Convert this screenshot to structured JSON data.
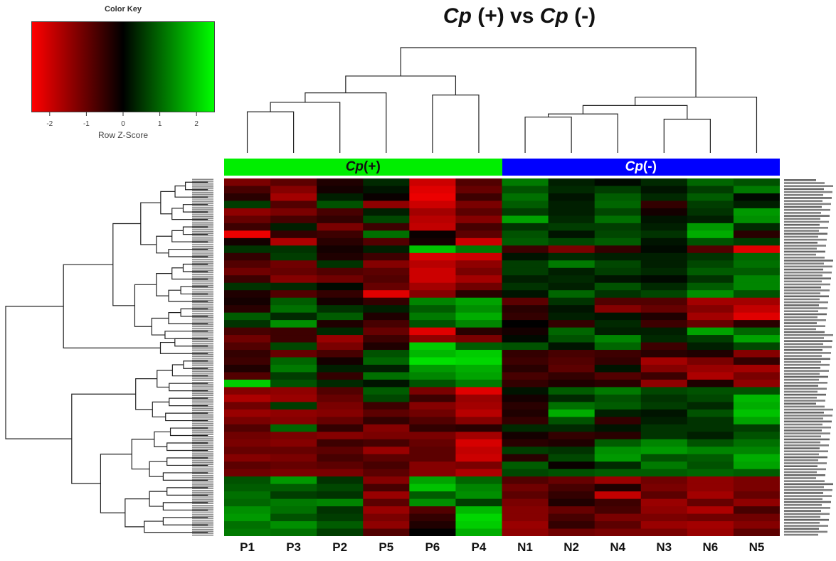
{
  "chart_data": {
    "type": "heatmap",
    "title": "Cp (+) vs Cp (-)",
    "title_parts": [
      {
        "text": "Cp",
        "italic": true
      },
      {
        "text": " (+) vs ",
        "italic": false
      },
      {
        "text": "Cp",
        "italic": true
      },
      {
        "text": " (-)",
        "italic": false
      }
    ],
    "color_key": {
      "title": "Color Key",
      "xlabel": "Row Z-Score",
      "ticks": [
        "-2",
        "-1",
        "0",
        "1",
        "2"
      ],
      "tick_values": [
        -2,
        -1,
        0,
        1,
        2
      ],
      "range": [
        -2.5,
        2.5
      ],
      "low_color": "#ff0000",
      "mid_color": "#000000",
      "high_color": "#00ff00"
    },
    "groups": [
      {
        "label_main": "Cp",
        "label_rest": " (+)",
        "color": "#00ee00",
        "text_color": "#111111",
        "columns": [
          "P1",
          "P3",
          "P2",
          "P5",
          "P6",
          "P4"
        ]
      },
      {
        "label_main": "Cp",
        "label_rest": " (-)",
        "color": "#0000ff",
        "text_color": "#ffffff",
        "columns": [
          "N1",
          "N2",
          "N4",
          "N3",
          "N6",
          "N5"
        ]
      }
    ],
    "columns": [
      "P1",
      "P3",
      "P2",
      "P5",
      "P6",
      "P4",
      "N1",
      "N2",
      "N4",
      "N3",
      "N6",
      "N5"
    ],
    "column_dendrogram": {
      "merges": [
        {
          "a": "P1",
          "b": "P3",
          "id": "c1",
          "height": 0.39
        },
        {
          "a": "c1",
          "b": "P2",
          "id": "c2",
          "height": 0.48
        },
        {
          "a": "c2",
          "b": "P5",
          "id": "c3",
          "height": 0.57
        },
        {
          "a": "P6",
          "b": "P4",
          "id": "c4",
          "height": 0.55
        },
        {
          "a": "c3",
          "b": "c4",
          "id": "c5",
          "height": 0.73
        },
        {
          "a": "N1",
          "b": "N2",
          "id": "c6",
          "height": 0.34
        },
        {
          "a": "c6",
          "b": "N4",
          "id": "c7",
          "height": 0.37
        },
        {
          "a": "N3",
          "b": "N6",
          "id": "c8",
          "height": 0.32
        },
        {
          "a": "c7",
          "b": "c8",
          "id": "c9",
          "height": 0.45
        },
        {
          "a": "c9",
          "b": "N5",
          "id": "c10",
          "height": 0.53
        },
        {
          "a": "c5",
          "b": "c10",
          "id": "c11",
          "height": 1.0
        }
      ]
    },
    "row_dendrogram": {
      "note": "Row clustering of genes; two major clusters",
      "major_clusters": [
        {
          "rows": [
            0,
            23
          ],
          "height": 0.72,
          "sub": [
            [
              0,
              21,
              0.48
            ],
            [
              21,
              23,
              0.25
            ]
          ]
        },
        {
          "rows": [
            24,
            47
          ],
          "height": 0.68,
          "sub": [
            [
              24,
              32,
              0.37
            ],
            [
              33,
              47,
              0.54
            ]
          ]
        }
      ],
      "root_height": 1.0
    },
    "row_zscores": [
      [
        -1.2,
        -0.9,
        -0.3,
        0.4,
        -2.0,
        -0.8,
        1.2,
        0.3,
        0.1,
        0.4,
        1.0,
        0.8
      ],
      [
        -0.7,
        -1.3,
        -0.2,
        0.2,
        -2.2,
        -1.0,
        0.8,
        0.4,
        0.6,
        0.2,
        0.6,
        1.2
      ],
      [
        -0.4,
        -1.6,
        0.3,
        -0.1,
        -2.3,
        -0.6,
        1.1,
        0.2,
        0.9,
        0.4,
        0.9,
        0.1
      ],
      [
        0.6,
        -0.8,
        0.8,
        -1.4,
        -2.0,
        -1.2,
        0.9,
        0.3,
        1.0,
        -0.5,
        0.6,
        0.3
      ],
      [
        -1.4,
        -1.2,
        -0.7,
        0.3,
        -1.6,
        -0.9,
        0.6,
        0.3,
        0.7,
        -0.2,
        0.5,
        1.5
      ],
      [
        -1.0,
        -0.7,
        -0.5,
        0.7,
        -1.8,
        -1.3,
        1.6,
        0.4,
        1.1,
        0.2,
        0.3,
        1.4
      ],
      [
        -0.6,
        0.3,
        -1.2,
        -0.6,
        -1.9,
        -0.7,
        0.5,
        0.6,
        0.6,
        0.3,
        1.5,
        0.4
      ],
      [
        -2.3,
        -0.5,
        -0.6,
        1.1,
        -0.1,
        -0.9,
        0.8,
        0.2,
        0.7,
        0.5,
        1.7,
        -0.4
      ],
      [
        -0.2,
        -1.7,
        -0.4,
        -0.8,
        -0.2,
        -2.0,
        0.9,
        0.7,
        0.9,
        0.2,
        0.8,
        0.6
      ],
      [
        0.5,
        0.5,
        -0.2,
        0.3,
        1.9,
        1.2,
        -0.6,
        -1.2,
        -0.5,
        0.1,
        -0.8,
        -2.2
      ],
      [
        -0.5,
        0.6,
        -0.3,
        -0.6,
        -2.1,
        -2.0,
        0.2,
        0.4,
        0.3,
        0.3,
        0.5,
        1.0
      ],
      [
        -0.8,
        -1.1,
        0.5,
        -1.3,
        -1.8,
        -1.4,
        0.6,
        1.2,
        0.7,
        0.3,
        0.7,
        1.1
      ],
      [
        -1.1,
        -1.0,
        -0.8,
        -0.9,
        -2.0,
        -1.2,
        0.6,
        0.3,
        0.6,
        0.4,
        0.9,
        0.9
      ],
      [
        -0.6,
        -1.3,
        -1.1,
        -0.8,
        -2.0,
        -1.6,
        0.3,
        0.4,
        0.2,
        0.1,
        0.5,
        1.3
      ],
      [
        0.5,
        0.4,
        0.1,
        -1.0,
        -1.6,
        -1.1,
        0.5,
        0.3,
        0.8,
        0.4,
        0.9,
        1.3
      ],
      [
        -0.3,
        -0.8,
        -0.5,
        -2.2,
        -1.3,
        -0.4,
        0.2,
        1.0,
        0.5,
        0.7,
        1.4,
        0.8
      ],
      [
        -0.2,
        0.9,
        -0.2,
        -0.5,
        1.3,
        1.6,
        -0.9,
        0.5,
        -0.8,
        -0.8,
        -1.6,
        -1.6
      ],
      [
        -0.4,
        1.1,
        0.5,
        0.3,
        0.9,
        1.4,
        -0.4,
        0.2,
        -1.3,
        -1.0,
        -1.3,
        -1.9
      ],
      [
        0.9,
        0.4,
        0.9,
        -0.3,
        1.2,
        1.7,
        -0.5,
        0.3,
        0.2,
        -0.3,
        -1.6,
        -2.2
      ],
      [
        0.5,
        1.4,
        -0.3,
        -0.7,
        0.8,
        1.3,
        0.0,
        -0.5,
        0.4,
        -0.6,
        -1.0,
        -0.4
      ],
      [
        -0.7,
        -0.6,
        0.4,
        -1.0,
        -2.2,
        -0.4,
        -0.2,
        1.0,
        0.3,
        0.3,
        1.6,
        1.0
      ],
      [
        -1.1,
        -0.6,
        -1.5,
        -0.6,
        -1.4,
        -1.2,
        0.1,
        0.8,
        1.3,
        0.4,
        0.6,
        1.6
      ],
      [
        -0.8,
        0.7,
        -1.2,
        -0.3,
        2.0,
        0.9,
        0.8,
        0.2,
        1.0,
        -0.6,
        0.3,
        0.7
      ],
      [
        -0.5,
        -1.0,
        -0.7,
        0.8,
        1.8,
        2.0,
        -0.5,
        -0.7,
        -0.6,
        -0.4,
        -0.3,
        -1.3
      ],
      [
        -0.6,
        1.0,
        -0.2,
        1.0,
        2.2,
        2.1,
        -0.6,
        -0.8,
        -0.5,
        -1.6,
        -1.2,
        -0.5
      ],
      [
        -0.3,
        1.2,
        0.3,
        0.3,
        1.5,
        1.7,
        -0.4,
        -0.9,
        0.2,
        -1.3,
        -1.5,
        -1.6
      ],
      [
        -0.8,
        0.6,
        -0.5,
        1.1,
        1.3,
        1.6,
        -0.7,
        -0.5,
        -0.8,
        -0.6,
        -1.7,
        -1.2
      ],
      [
        2.0,
        0.8,
        0.4,
        0.2,
        0.8,
        1.2,
        -0.5,
        -0.3,
        -0.4,
        -1.4,
        -0.3,
        -1.4
      ],
      [
        -1.3,
        -1.4,
        -0.8,
        0.9,
        -1.2,
        -2.2,
        0.2,
        0.9,
        1.2,
        0.7,
        0.8,
        0.8
      ],
      [
        -1.7,
        -1.5,
        -1.0,
        0.7,
        -0.6,
        -1.5,
        -0.2,
        0.4,
        0.8,
        0.5,
        0.7,
        1.8
      ],
      [
        -1.1,
        0.6,
        -1.2,
        -0.6,
        -1.3,
        -1.6,
        -0.4,
        1.1,
        0.9,
        0.6,
        0.4,
        1.7
      ],
      [
        -1.5,
        -1.4,
        -1.3,
        -0.9,
        -1.1,
        -1.8,
        -0.3,
        1.7,
        0.3,
        0.2,
        0.8,
        1.9
      ],
      [
        -1.2,
        -1.3,
        -1.0,
        -0.5,
        -0.8,
        -1.3,
        -0.5,
        0.8,
        -0.5,
        0.3,
        0.5,
        1.6
      ],
      [
        -0.8,
        1.0,
        -0.5,
        -1.3,
        -0.5,
        -0.4,
        0.4,
        0.4,
        0.2,
        0.5,
        0.5,
        0.6
      ],
      [
        -1.1,
        -1.2,
        -1.3,
        -1.2,
        -1.2,
        -1.6,
        -0.2,
        -0.5,
        -0.4,
        0.5,
        0.3,
        0.8
      ],
      [
        -1.2,
        -1.3,
        -0.6,
        -0.7,
        -1.0,
        -2.1,
        -0.4,
        -0.3,
        0.9,
        1.3,
        0.8,
        1.1
      ],
      [
        -1.0,
        -1.0,
        -0.9,
        -1.5,
        -0.9,
        -1.9,
        0.6,
        0.5,
        1.4,
        1.5,
        1.3,
        1.3
      ],
      [
        -1.3,
        -1.2,
        -0.7,
        -0.9,
        -0.9,
        -2.0,
        -0.4,
        0.7,
        1.5,
        0.8,
        0.9,
        1.7
      ],
      [
        -0.9,
        -1.0,
        -0.9,
        -0.7,
        -1.3,
        -1.2,
        0.9,
        -0.1,
        0.4,
        1.2,
        0.8,
        1.6
      ],
      [
        -1.1,
        -1.2,
        -1.2,
        -0.9,
        -1.3,
        -1.7,
        0.7,
        0.8,
        0.9,
        0.9,
        1.0,
        0.9
      ],
      [
        0.8,
        1.5,
        0.5,
        -1.3,
        1.6,
        1.0,
        -0.8,
        -1.0,
        -1.5,
        -1.1,
        -1.4,
        -1.2
      ],
      [
        0.9,
        0.9,
        0.7,
        -0.7,
        1.9,
        1.3,
        -1.1,
        -0.7,
        -0.3,
        -1.2,
        -1.4,
        -1.2
      ],
      [
        1.1,
        0.6,
        0.5,
        -1.5,
        0.9,
        1.4,
        -0.9,
        -0.5,
        -1.9,
        -0.9,
        -1.6,
        -1.0
      ],
      [
        1.0,
        1.2,
        1.3,
        -0.9,
        1.4,
        0.6,
        -1.2,
        -0.3,
        -0.6,
        -1.5,
        -1.0,
        -1.4
      ],
      [
        1.4,
        1.1,
        0.5,
        -1.5,
        -0.8,
        1.8,
        -1.3,
        -1.0,
        -0.7,
        -1.4,
        -1.7,
        -0.7
      ],
      [
        1.5,
        0.8,
        0.6,
        -1.2,
        -0.5,
        2.1,
        -1.3,
        -0.7,
        -1.2,
        -1.2,
        -1.1,
        -1.1
      ],
      [
        1.1,
        1.4,
        0.9,
        -1.4,
        -0.3,
        2.0,
        -1.5,
        -0.5,
        -0.9,
        -1.5,
        -1.6,
        -1.3
      ],
      [
        1.2,
        1.1,
        0.6,
        -0.8,
        0.0,
        1.7,
        -1.4,
        -1.1,
        -1.2,
        -1.2,
        -1.5,
        -0.9
      ]
    ],
    "xlabel": "",
    "ylabel": "",
    "row_labels_note": "gene labels present but illegible"
  }
}
